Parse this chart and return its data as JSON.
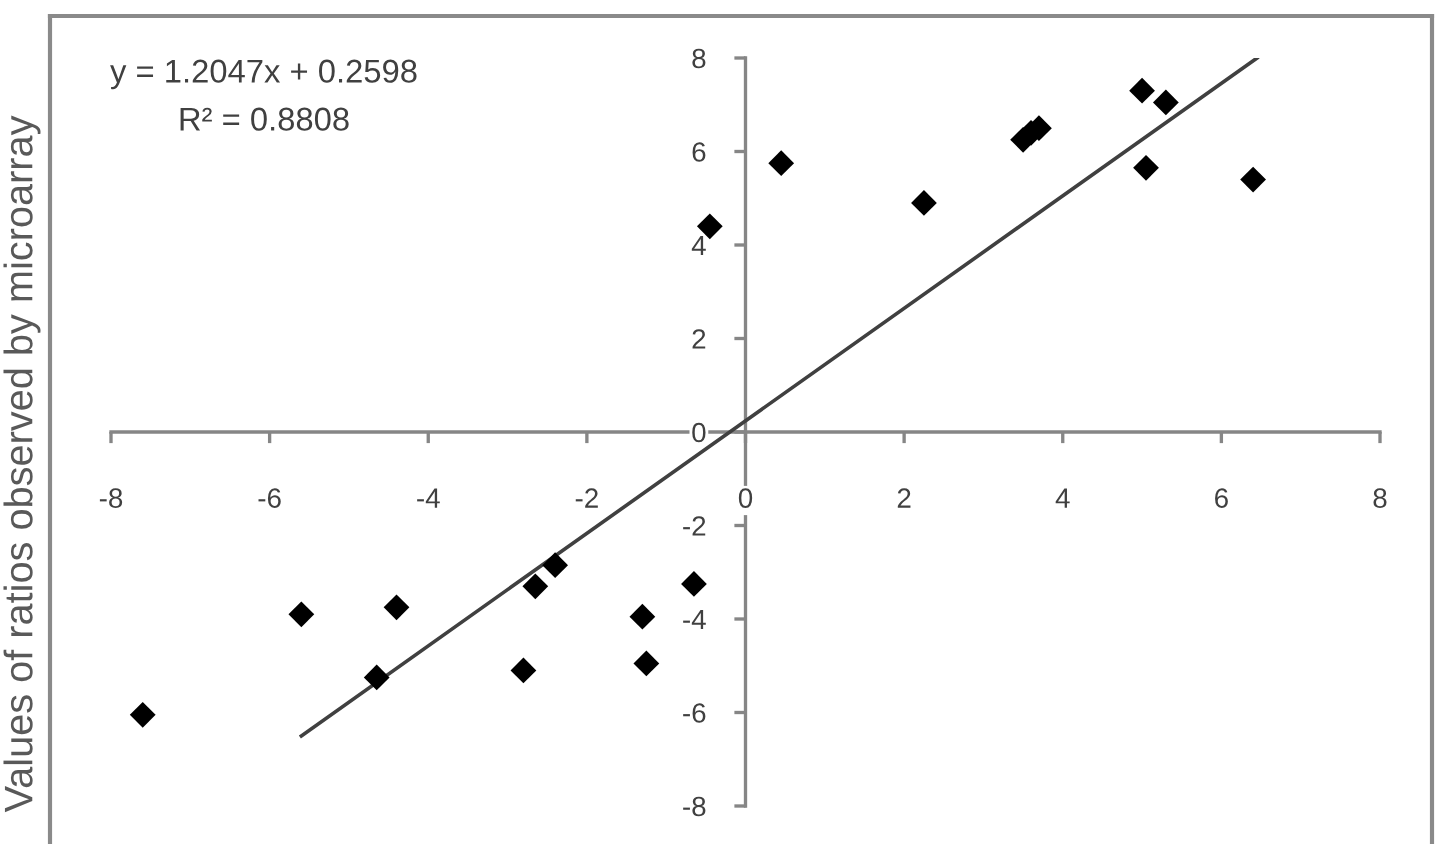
{
  "chart_data": {
    "type": "scatter",
    "ylabel": "Values of ratios observed by microarray",
    "annotations": [
      "y = 1.2047x + 0.2598",
      "R² = 0.8808"
    ],
    "xlim": [
      -8,
      8
    ],
    "ylim": [
      -8,
      8
    ],
    "xticks": [
      -8,
      -6,
      -4,
      -2,
      0,
      2,
      4,
      6,
      8
    ],
    "yticks": [
      -8,
      -6,
      -4,
      -2,
      0,
      2,
      4,
      6,
      8
    ],
    "series": [
      {
        "marker": "diamond",
        "color": "#000000",
        "x": [
          -7.6,
          -5.6,
          -4.65,
          -4.4,
          -2.8,
          -2.65,
          -2.4,
          -1.3,
          -1.25,
          -0.65,
          -0.45,
          0.45,
          2.25,
          3.5,
          3.6,
          3.7,
          5.0,
          5.05,
          5.3,
          6.4
        ],
        "values": [
          -6.05,
          -3.9,
          -5.25,
          -3.75,
          -5.1,
          -3.3,
          -2.85,
          -3.95,
          -4.95,
          -3.25,
          4.4,
          5.75,
          4.9,
          6.25,
          6.4,
          6.5,
          7.3,
          5.65,
          7.05,
          5.4
        ]
      },
      {
        "type": "line",
        "color": "#404040",
        "x": [
          -5.6,
          6.45
        ],
        "values": [
          -6.5,
          8.0
        ]
      }
    ]
  }
}
